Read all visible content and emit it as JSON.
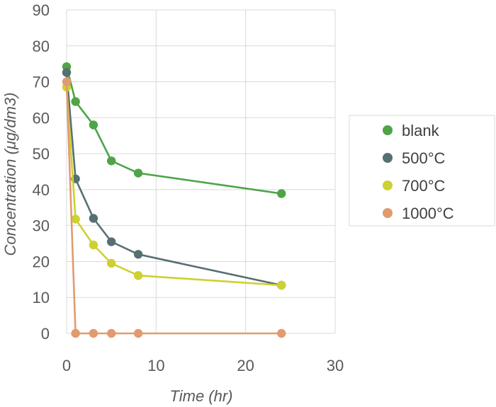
{
  "chart_data": {
    "type": "scatter",
    "xlabel": "Time (hr)",
    "ylabel": "Concentration (μg/dm3)",
    "xlim": [
      0,
      30
    ],
    "ylim": [
      0,
      90
    ],
    "xticks": [
      "0",
      "10",
      "20",
      "30"
    ],
    "yticks": [
      "0",
      "10",
      "20",
      "30",
      "40",
      "50",
      "60",
      "70",
      "80",
      "90"
    ],
    "grid": true,
    "legend_position": "right",
    "series": [
      {
        "name": "blank",
        "color": "#4ea447",
        "points": [
          [
            0,
            74.2
          ],
          [
            1,
            64.5
          ],
          [
            3,
            58
          ],
          [
            5,
            48
          ],
          [
            8,
            44.6
          ],
          [
            24,
            38.9
          ]
        ]
      },
      {
        "name": "500°C",
        "color": "#566f73",
        "points": [
          [
            0,
            72.6
          ],
          [
            1,
            43
          ],
          [
            3,
            32
          ],
          [
            5,
            25.5
          ],
          [
            8,
            22
          ],
          [
            24,
            13.4
          ]
        ]
      },
      {
        "name": "700°C",
        "color": "#cdd131",
        "points": [
          [
            0,
            68.5
          ],
          [
            1,
            31.8
          ],
          [
            3,
            24.6
          ],
          [
            5,
            19.5
          ],
          [
            8,
            16.1
          ],
          [
            24,
            13.4
          ]
        ]
      },
      {
        "name": "1000°C",
        "color": "#e19b6e",
        "points": [
          [
            0,
            70
          ],
          [
            1,
            0
          ],
          [
            3,
            0
          ],
          [
            5,
            0
          ],
          [
            8,
            0
          ],
          [
            24,
            0
          ]
        ]
      }
    ]
  }
}
